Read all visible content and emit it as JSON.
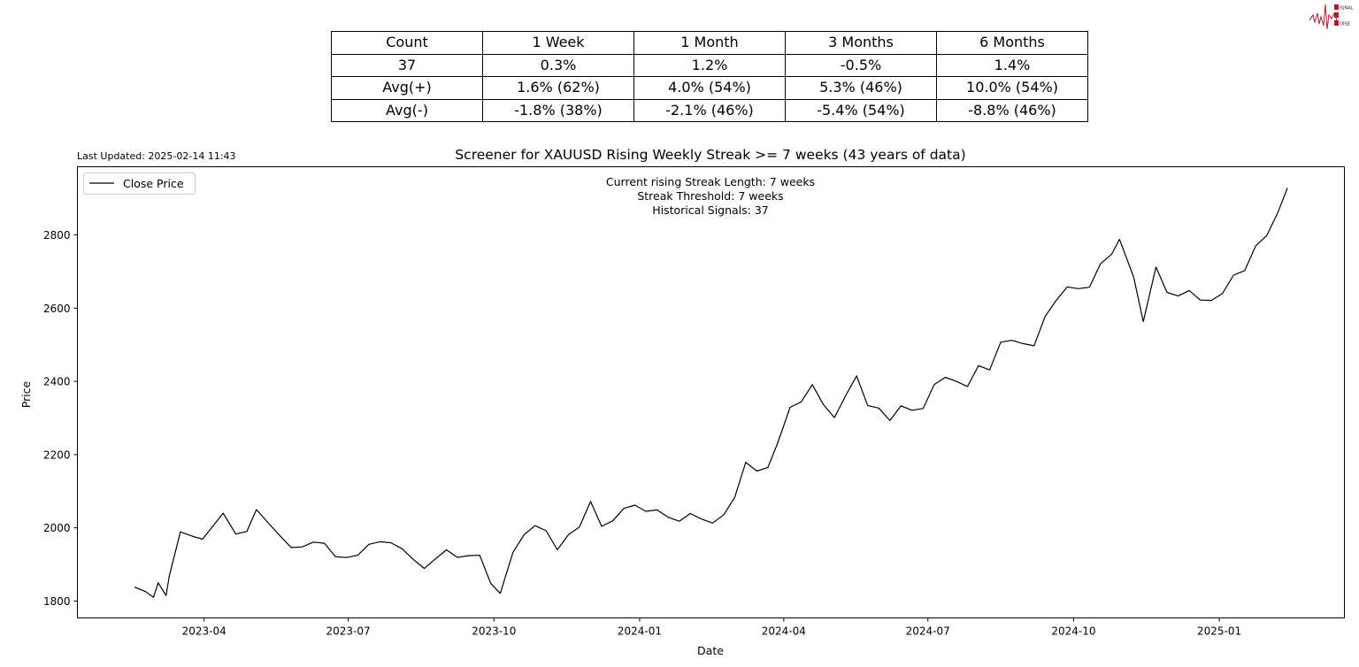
{
  "logo": {
    "text": "SIGNAL 2 NOISE",
    "color": "#b0182a"
  },
  "stats_table": {
    "rows": [
      [
        "Count",
        "1 Week",
        "1 Month",
        "3 Months",
        "6 Months"
      ],
      [
        "37",
        "0.3%",
        "1.2%",
        "-0.5%",
        "1.4%"
      ],
      [
        "Avg(+)",
        "1.6% (62%)",
        "4.0% (54%)",
        "5.3% (46%)",
        "10.0% (54%)"
      ],
      [
        "Avg(-)",
        "-1.8% (38%)",
        "-2.1% (46%)",
        "-5.4% (54%)",
        "-8.8% (46%)"
      ]
    ]
  },
  "last_updated": "Last Updated: 2025-02-14 11:43",
  "chart_data": {
    "type": "line",
    "title": "Screener for XAUUSD Rising Weekly Streak >= 7 weeks (43 years of data)",
    "xlabel": "Date",
    "ylabel": "Price",
    "xlim": [
      "2023-01-11",
      "2025-03-21"
    ],
    "ylim": [
      1754,
      2986
    ],
    "grid": false,
    "legend": {
      "position": "top-left",
      "entries": [
        "Close Price"
      ]
    },
    "annotation": [
      "Current rising Streak Length: 7 weeks",
      "Streak Threshold: 7 weeks",
      "Historical Signals: 37"
    ],
    "x_ticks": [
      "2023-04",
      "2023-07",
      "2023-10",
      "2024-01",
      "2024-04",
      "2024-07",
      "2024-10",
      "2025-01"
    ],
    "y_ticks": [
      1800,
      2000,
      2200,
      2400,
      2600,
      2800
    ],
    "series": [
      {
        "name": "Close Price",
        "color": "#000000",
        "x": [
          "2023-02-16",
          "2023-02-23",
          "2023-02-28",
          "2023-03-03",
          "2023-03-08",
          "2023-03-10",
          "2023-03-17",
          "2023-03-24",
          "2023-03-31",
          "2023-04-07",
          "2023-04-13",
          "2023-04-21",
          "2023-04-28",
          "2023-05-04",
          "2023-05-12",
          "2023-05-19",
          "2023-05-26",
          "2023-06-02",
          "2023-06-09",
          "2023-06-16",
          "2023-06-23",
          "2023-06-30",
          "2023-07-07",
          "2023-07-14",
          "2023-07-21",
          "2023-07-28",
          "2023-08-04",
          "2023-08-11",
          "2023-08-18",
          "2023-08-25",
          "2023-09-01",
          "2023-09-08",
          "2023-09-15",
          "2023-09-22",
          "2023-09-29",
          "2023-10-05",
          "2023-10-13",
          "2023-10-20",
          "2023-10-27",
          "2023-11-03",
          "2023-11-10",
          "2023-11-17",
          "2023-11-24",
          "2023-12-01",
          "2023-12-08",
          "2023-12-15",
          "2023-12-22",
          "2023-12-29",
          "2024-01-05",
          "2024-01-12",
          "2024-01-19",
          "2024-01-26",
          "2024-02-02",
          "2024-02-09",
          "2024-02-16",
          "2024-02-23",
          "2024-03-01",
          "2024-03-08",
          "2024-03-15",
          "2024-03-22",
          "2024-03-28",
          "2024-04-05",
          "2024-04-12",
          "2024-04-19",
          "2024-04-26",
          "2024-05-03",
          "2024-05-10",
          "2024-05-17",
          "2024-05-24",
          "2024-05-31",
          "2024-06-07",
          "2024-06-14",
          "2024-06-21",
          "2024-06-28",
          "2024-07-05",
          "2024-07-12",
          "2024-07-19",
          "2024-07-26",
          "2024-08-02",
          "2024-08-09",
          "2024-08-16",
          "2024-08-23",
          "2024-08-30",
          "2024-09-06",
          "2024-09-13",
          "2024-09-20",
          "2024-09-27",
          "2024-10-04",
          "2024-10-11",
          "2024-10-18",
          "2024-10-25",
          "2024-10-30",
          "2024-11-08",
          "2024-11-14",
          "2024-11-22",
          "2024-11-29",
          "2024-12-06",
          "2024-12-13",
          "2024-12-20",
          "2024-12-27",
          "2025-01-03",
          "2025-01-10",
          "2025-01-17",
          "2025-01-24",
          "2025-01-31",
          "2025-02-07",
          "2025-02-13"
        ],
        "y": [
          1838,
          1826,
          1810,
          1850,
          1815,
          1868,
          1989,
          1978,
          1969,
          2007,
          2040,
          1983,
          1990,
          2050,
          2011,
          1978,
          1946,
          1948,
          1961,
          1958,
          1921,
          1919,
          1925,
          1955,
          1962,
          1959,
          1943,
          1914,
          1889,
          1915,
          1940,
          1919,
          1924,
          1925,
          1848,
          1821,
          1933,
          1981,
          2006,
          1992,
          1940,
          1981,
          2002,
          2072,
          2004,
          2019,
          2053,
          2062,
          2045,
          2049,
          2029,
          2018,
          2039,
          2024,
          2013,
          2035,
          2083,
          2179,
          2155,
          2165,
          2230,
          2329,
          2344,
          2391,
          2337,
          2301,
          2360,
          2415,
          2334,
          2327,
          2293,
          2333,
          2321,
          2326,
          2391,
          2411,
          2400,
          2386,
          2443,
          2431,
          2507,
          2512,
          2503,
          2497,
          2577,
          2621,
          2658,
          2653,
          2657,
          2721,
          2747,
          2788,
          2684,
          2563,
          2712,
          2643,
          2633,
          2648,
          2622,
          2621,
          2640,
          2690,
          2702,
          2770,
          2798,
          2861,
          2928
        ]
      }
    ]
  }
}
